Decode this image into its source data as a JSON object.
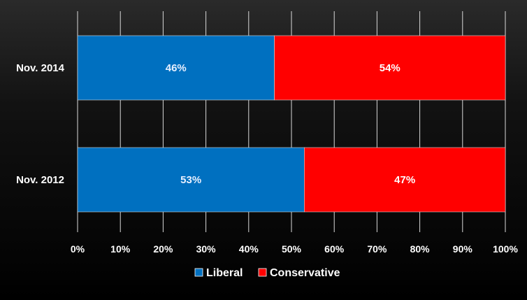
{
  "chart_data": {
    "type": "bar",
    "orientation": "horizontal",
    "stacked": true,
    "percent_stacked": true,
    "categories": [
      "Nov. 2014",
      "Nov. 2012"
    ],
    "series": [
      {
        "name": "Liberal",
        "color": "#0070c0",
        "values": [
          46,
          53
        ],
        "labels": [
          "46%",
          "53%"
        ],
        "label_color": "#e8f0ff"
      },
      {
        "name": "Conservative",
        "color": "#ff0000",
        "values": [
          54,
          47
        ],
        "labels": [
          "54%",
          "47%"
        ],
        "label_color": "#ffffff"
      }
    ],
    "xlim": [
      0,
      100
    ],
    "xticks": [
      "0%",
      "10%",
      "20%",
      "30%",
      "40%",
      "50%",
      "60%",
      "70%",
      "80%",
      "90%",
      "100%"
    ],
    "grid": true,
    "legend": "bottom",
    "title": "",
    "xlabel": "",
    "ylabel": ""
  },
  "colors": {
    "background": "#000000",
    "gridline": "#d9d9d9",
    "text": "#ffffff"
  }
}
